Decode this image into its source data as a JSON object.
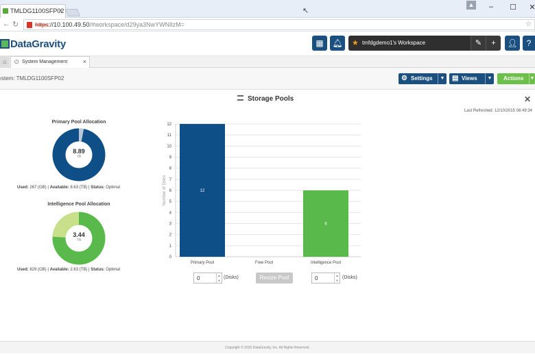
{
  "browser": {
    "tab_title": "TMLDG1100SFP02 - |",
    "url_scheme": "https",
    "url_host": "://10.100.49.50",
    "url_path": "/#workspace/d29ya3NwYWNlIzM="
  },
  "app": {
    "logo_text": "DataGravity",
    "workspace_label": "tmfdgdemo1's Workspace"
  },
  "page_tab": {
    "label": "System Management"
  },
  "toolbar": {
    "system_label": "ystem: TMLDG1100SFP02",
    "settings_label": "Settings",
    "views_label": "Views",
    "actions_label": "Actions"
  },
  "storage": {
    "title": "Storage Pools",
    "last_refreshed": "Last Refreshed: 12/10/2015 08:49:34"
  },
  "primary_pool": {
    "title": "Primary Pool Allocation",
    "center_value": "8.89",
    "center_unit": "TB",
    "used_fraction": 0.03,
    "caption_used_label": "Used:",
    "caption_used_value": " 267 (GB) | ",
    "caption_available_label": "Available:",
    "caption_available_value": " 8.63 (TB) | ",
    "caption_status_label": "Status:",
    "caption_status_value": " Optimal",
    "used_color": "#b9c9d9",
    "free_color": "#0e4f87"
  },
  "intelligence_pool": {
    "title": "Intelligence Pool Allocation",
    "center_value": "3.44",
    "center_unit": "TB",
    "used_fraction": 0.24,
    "caption_used_label": "Used:",
    "caption_used_value": " 829 (GB) | ",
    "caption_available_label": "Available:",
    "caption_available_value": " 2.63 (TB) | ",
    "caption_status_label": "Status:",
    "caption_status_value": " Optimal",
    "used_color": "#c9e08a",
    "free_color": "#5ab94b"
  },
  "chart_data": {
    "type": "bar",
    "categories": [
      "Primary Pool",
      "Free Pool",
      "Intelligence Pool"
    ],
    "values": [
      12,
      0,
      6
    ],
    "data_labels": [
      "12",
      "",
      "6"
    ],
    "colors": [
      "#0e4f87",
      "#888888",
      "#5ab94b"
    ],
    "ylabel": "Number of Disks",
    "ylim": [
      0,
      12
    ],
    "yticks": [
      "0",
      "1",
      "2",
      "3",
      "4",
      "5",
      "6",
      "7",
      "8",
      "9",
      "10",
      "11",
      "12"
    ],
    "grid": true
  },
  "controls": {
    "left_spinner_value": "0",
    "right_spinner_value": "0",
    "disks_label": "(Disks)",
    "resize_label": "Resize Pool"
  },
  "footer": {
    "text": "Copyright © 2015 DataGravity, Inc. All Rights Reserved."
  }
}
